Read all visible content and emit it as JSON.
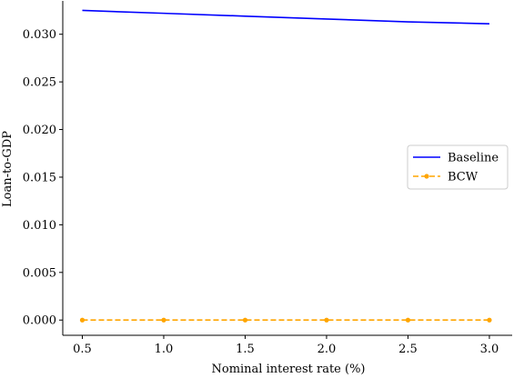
{
  "chart_data": {
    "type": "line",
    "title": "",
    "xlabel": "Nominal interest rate (%)",
    "ylabel": "Loan-to-GDP",
    "xlim": [
      0.38,
      3.14
    ],
    "ylim": [
      -0.0016,
      0.0335
    ],
    "x_ticks": [
      0.5,
      1.0,
      1.5,
      2.0,
      2.5,
      3.0
    ],
    "x_tick_labels": [
      "0.5",
      "1.0",
      "1.5",
      "2.0",
      "2.5",
      "3.0"
    ],
    "y_ticks": [
      0.0,
      0.005,
      0.01,
      0.015,
      0.02,
      0.025,
      0.03
    ],
    "y_tick_labels": [
      "0.000",
      "0.005",
      "0.010",
      "0.015",
      "0.020",
      "0.025",
      "0.030"
    ],
    "grid": false,
    "legend": {
      "position": "center-right"
    },
    "series": [
      {
        "name": "Baseline",
        "color": "#0000ff",
        "style": "solid",
        "marker": "none",
        "x": [
          0.5,
          1.0,
          1.5,
          2.0,
          2.5,
          3.0
        ],
        "y": [
          0.0325,
          0.0322,
          0.0319,
          0.0316,
          0.0313,
          0.0311
        ]
      },
      {
        "name": "BCW",
        "color": "#ffa500",
        "style": "dashed",
        "marker": "circle",
        "x": [
          0.5,
          1.0,
          1.5,
          2.0,
          2.5,
          3.0
        ],
        "y": [
          0.0,
          0.0,
          0.0,
          0.0,
          0.0,
          0.0
        ]
      }
    ]
  }
}
